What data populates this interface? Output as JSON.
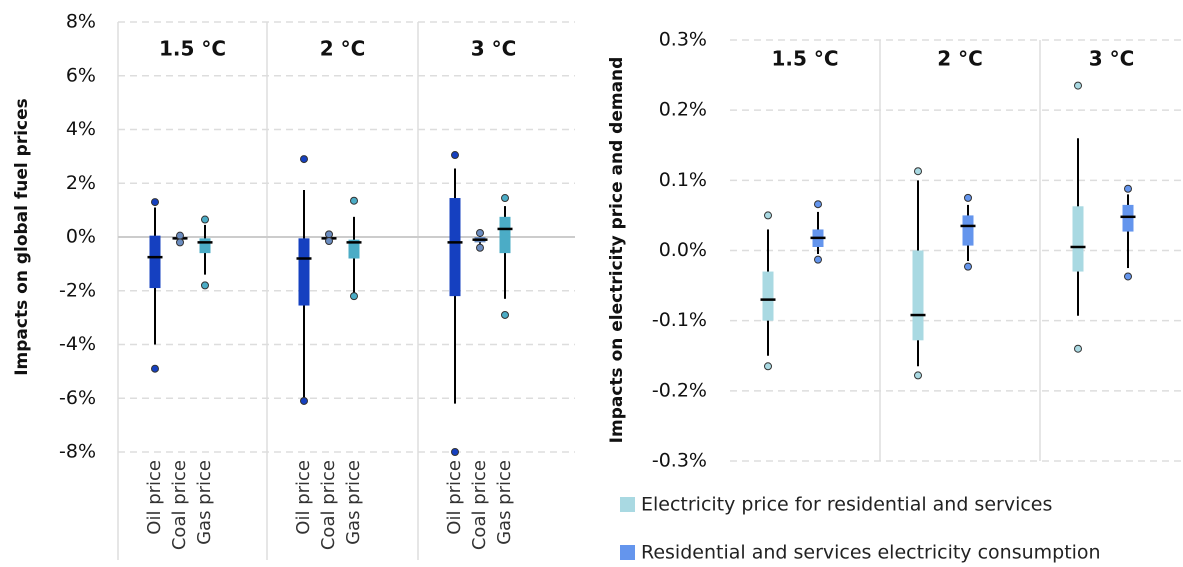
{
  "chart_data": [
    {
      "type": "box",
      "y_label": "Impacts on global fuel prices",
      "categories": [
        "1.5 °C",
        "2 °C",
        "3 °C"
      ],
      "ylim": [
        -8,
        8
      ],
      "yticks": [
        {
          "value": -8,
          "label": "-8%"
        },
        {
          "value": -6,
          "label": "-6%"
        },
        {
          "value": -4,
          "label": "-4%"
        },
        {
          "value": -2,
          "label": "-2%"
        },
        {
          "value": 0,
          "label": "0%"
        },
        {
          "value": 2,
          "label": "2%"
        },
        {
          "value": 4,
          "label": "4%"
        },
        {
          "value": 6,
          "label": "6%"
        },
        {
          "value": 8,
          "label": "8%"
        }
      ],
      "grid": true,
      "zero_line": true,
      "legend": false,
      "series": [
        {
          "name": "Oil price",
          "color": "#1540c0",
          "boxes": [
            {
              "whisker_low": -4.0,
              "q1": -1.9,
              "median": -0.75,
              "q3": 0.05,
              "whisker_high": 1.1,
              "points": [
                1.3,
                -4.9
              ]
            },
            {
              "whisker_low": -6.0,
              "q1": -2.55,
              "median": -0.8,
              "q3": -0.05,
              "whisker_high": 1.75,
              "points": [
                2.9,
                -6.1
              ]
            },
            {
              "whisker_low": -6.2,
              "q1": -2.2,
              "median": -0.2,
              "q3": 1.45,
              "whisker_high": 2.55,
              "points": [
                3.05,
                -8.0
              ]
            }
          ]
        },
        {
          "name": "Coal price",
          "color": "#6a8cc0",
          "boxes": [
            {
              "whisker_low": -0.15,
              "q1": -0.1,
              "median": -0.05,
              "q3": 0.0,
              "whisker_high": 0.02,
              "points": [
                0.05,
                -0.2
              ]
            },
            {
              "whisker_low": -0.12,
              "q1": -0.1,
              "median": -0.05,
              "q3": 0.0,
              "whisker_high": 0.05,
              "points": [
                0.1,
                -0.15
              ]
            },
            {
              "whisker_low": -0.25,
              "q1": -0.2,
              "median": -0.1,
              "q3": 0.0,
              "whisker_high": 0.05,
              "points": [
                0.15,
                -0.4
              ]
            }
          ]
        },
        {
          "name": "Gas price",
          "color": "#4bacc6",
          "boxes": [
            {
              "whisker_low": -1.4,
              "q1": -0.6,
              "median": -0.2,
              "q3": -0.05,
              "whisker_high": 0.45,
              "points": [
                0.65,
                -1.8
              ]
            },
            {
              "whisker_low": -2.1,
              "q1": -0.8,
              "median": -0.2,
              "q3": -0.1,
              "whisker_high": 0.75,
              "points": [
                1.35,
                -2.2
              ]
            },
            {
              "whisker_low": -2.3,
              "q1": -0.6,
              "median": 0.3,
              "q3": 0.75,
              "whisker_high": 1.15,
              "points": [
                1.45,
                -2.9
              ]
            }
          ]
        }
      ]
    },
    {
      "type": "box",
      "y_label": "Impacts on electricity price and demand",
      "categories": [
        "1.5 °C",
        "2 °C",
        "3 °C"
      ],
      "ylim": [
        -0.3,
        0.3
      ],
      "yticks": [
        {
          "value": -0.3,
          "label": "-0.3%"
        },
        {
          "value": -0.2,
          "label": "-0.2%"
        },
        {
          "value": -0.1,
          "label": "-0.1%"
        },
        {
          "value": 0.0,
          "label": "0.0%"
        },
        {
          "value": 0.1,
          "label": "0.1%"
        },
        {
          "value": 0.2,
          "label": "0.2%"
        },
        {
          "value": 0.3,
          "label": "0.3%"
        }
      ],
      "grid": true,
      "zero_line": false,
      "legend": true,
      "series": [
        {
          "name": "Electricity price for residential and services",
          "color": "#a9d9e2",
          "boxes": [
            {
              "whisker_low": -0.15,
              "q1": -0.1,
              "median": -0.07,
              "q3": -0.03,
              "whisker_high": 0.03,
              "points": [
                0.05,
                -0.165
              ]
            },
            {
              "whisker_low": -0.165,
              "q1": -0.128,
              "median": -0.092,
              "q3": 0.0,
              "whisker_high": 0.1,
              "points": [
                0.113,
                -0.178
              ]
            },
            {
              "whisker_low": -0.093,
              "q1": -0.03,
              "median": 0.005,
              "q3": 0.063,
              "whisker_high": 0.16,
              "points": [
                0.235,
                -0.14
              ]
            }
          ]
        },
        {
          "name": "Residential and services electricity consumption",
          "color": "#6495ed",
          "boxes": [
            {
              "whisker_low": -0.005,
              "q1": 0.005,
              "median": 0.018,
              "q3": 0.03,
              "whisker_high": 0.055,
              "points": [
                0.066,
                -0.013
              ]
            },
            {
              "whisker_low": -0.015,
              "q1": 0.007,
              "median": 0.035,
              "q3": 0.05,
              "whisker_high": 0.065,
              "points": [
                0.075,
                -0.023
              ]
            },
            {
              "whisker_low": -0.025,
              "q1": 0.027,
              "median": 0.048,
              "q3": 0.065,
              "whisker_high": 0.08,
              "points": [
                0.088,
                -0.037
              ]
            }
          ]
        }
      ]
    }
  ]
}
